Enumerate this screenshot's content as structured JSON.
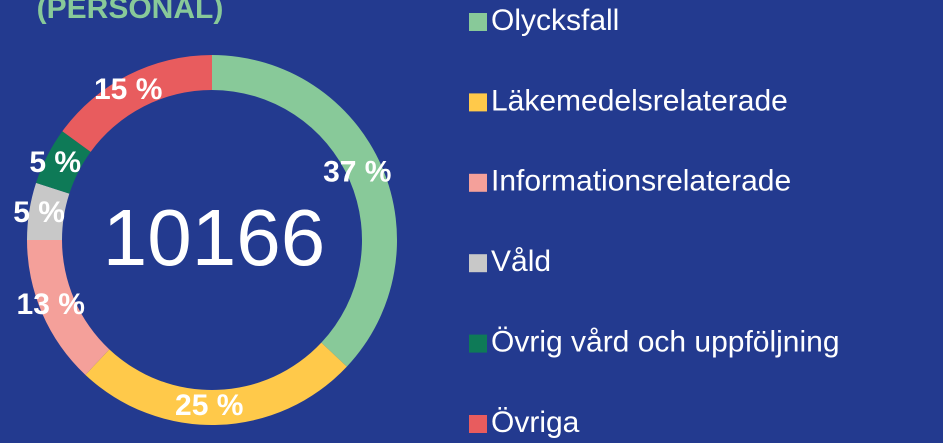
{
  "chart_data": {
    "type": "donut",
    "title": "(PERSONAL)",
    "center_label": "10166",
    "categories": [
      "Olycksfall",
      "Läkemedelsrelaterade",
      "Informationsrelaterade",
      "Våld",
      "Övrig vård och uppföljning",
      "Övriga"
    ],
    "values": [
      37,
      25,
      13,
      5,
      5,
      15
    ],
    "value_labels": [
      "37 %",
      "25 %",
      "13 %",
      "5 %",
      "5 %",
      "15 %"
    ],
    "colors": [
      "#88c999",
      "#ffc94a",
      "#f4a09a",
      "#c8c8c8",
      "#0e7a57",
      "#e85c5e"
    ],
    "legend": "right"
  }
}
